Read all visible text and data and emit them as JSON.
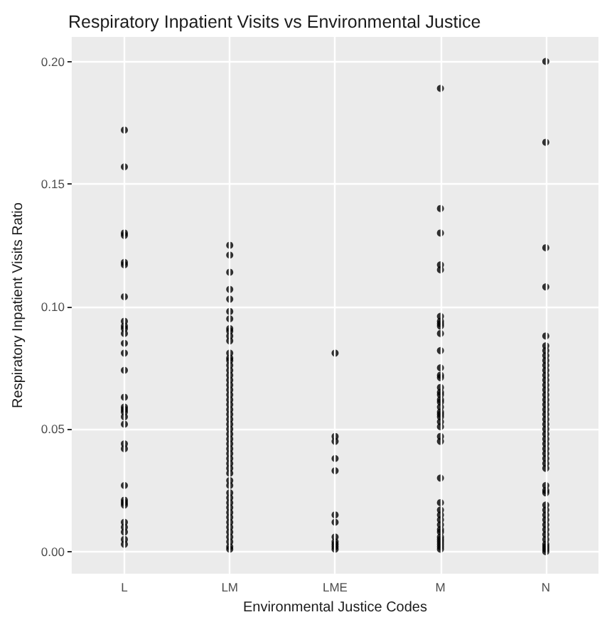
{
  "chart_data": {
    "type": "scatter",
    "title": "Respiratory Inpatient Visits vs Environmental Justice",
    "xlabel": "Environmental Justice Codes",
    "ylabel": "Respiratory Inpatient Visits Ratio",
    "categories": [
      "L",
      "LM",
      "LME",
      "M",
      "N"
    ],
    "ylim": [
      -0.009,
      0.21
    ],
    "yticks": [
      {
        "value": 0,
        "label": "0.00"
      },
      {
        "value": 0.05,
        "label": "0.05"
      },
      {
        "value": 0.1,
        "label": "0.10"
      },
      {
        "value": 0.15,
        "label": "0.15"
      },
      {
        "value": 0.2,
        "label": "0.20"
      }
    ],
    "grid": true,
    "marker": "circle",
    "series": [
      {
        "color": "#000000",
        "x": [
          "L",
          "L",
          "L",
          "L",
          "L",
          "L",
          "L",
          "L",
          "L",
          "L",
          "L",
          "L",
          "L",
          "L",
          "L",
          "L",
          "L",
          "L",
          "L",
          "L",
          "L",
          "L",
          "L",
          "L",
          "L",
          "L",
          "L",
          "L",
          "L",
          "L",
          "L",
          "LM",
          "LM",
          "LM",
          "LM",
          "LM",
          "LM",
          "LM",
          "LM",
          "LM",
          "LM",
          "LM",
          "LM",
          "LM",
          "LM",
          "LM",
          "LM",
          "LM",
          "LM",
          "LM",
          "LM",
          "LM",
          "LM",
          "LM",
          "LM",
          "LM",
          "LM",
          "LM",
          "LM",
          "LM",
          "LM",
          "LM",
          "LM",
          "LM",
          "LM",
          "LM",
          "LM",
          "LM",
          "LM",
          "LM",
          "LM",
          "LM",
          "LM",
          "LM",
          "LM",
          "LM",
          "LM",
          "LM",
          "LM",
          "LM",
          "LM",
          "LM",
          "LM",
          "LME",
          "LME",
          "LME",
          "LME",
          "LME",
          "LME",
          "LME",
          "LME",
          "LME",
          "LME",
          "LME",
          "LME",
          "M",
          "M",
          "M",
          "M",
          "M",
          "M",
          "M",
          "M",
          "M",
          "M",
          "M",
          "M",
          "M",
          "M",
          "M",
          "M",
          "M",
          "M",
          "M",
          "M",
          "M",
          "M",
          "M",
          "M",
          "M",
          "M",
          "M",
          "M",
          "M",
          "M",
          "M",
          "M",
          "M",
          "M",
          "M",
          "M",
          "M",
          "M",
          "M",
          "M",
          "M",
          "N",
          "N",
          "N",
          "N",
          "N",
          "N",
          "N",
          "N",
          "N",
          "N",
          "N",
          "N",
          "N",
          "N",
          "N",
          "N",
          "N",
          "N",
          "N",
          "N",
          "N",
          "N",
          "N",
          "N",
          "N",
          "N",
          "N",
          "N",
          "N",
          "N",
          "N",
          "N",
          "N",
          "N",
          "N",
          "N",
          "N",
          "N",
          "N",
          "N",
          "N",
          "N",
          "N",
          "N",
          "N",
          "N"
        ],
        "values": [
          0.172,
          0.157,
          0.13,
          0.129,
          0.118,
          0.117,
          0.104,
          0.094,
          0.092,
          0.091,
          0.089,
          0.085,
          0.081,
          0.074,
          0.063,
          0.059,
          0.058,
          0.057,
          0.055,
          0.052,
          0.044,
          0.042,
          0.027,
          0.021,
          0.02,
          0.019,
          0.012,
          0.01,
          0.008,
          0.005,
          0.003,
          0.125,
          0.121,
          0.114,
          0.107,
          0.103,
          0.098,
          0.095,
          0.091,
          0.09,
          0.088,
          0.086,
          0.081,
          0.079,
          0.078,
          0.076,
          0.074,
          0.072,
          0.07,
          0.068,
          0.066,
          0.064,
          0.062,
          0.06,
          0.058,
          0.056,
          0.054,
          0.052,
          0.05,
          0.048,
          0.046,
          0.044,
          0.042,
          0.04,
          0.038,
          0.036,
          0.034,
          0.032,
          0.029,
          0.027,
          0.024,
          0.022,
          0.02,
          0.018,
          0.016,
          0.014,
          0.012,
          0.01,
          0.008,
          0.006,
          0.004,
          0.002,
          0.001,
          0.081,
          0.047,
          0.045,
          0.038,
          0.033,
          0.015,
          0.012,
          0.006,
          0.004,
          0.003,
          0.002,
          0.001,
          0.189,
          0.14,
          0.13,
          0.117,
          0.115,
          0.096,
          0.094,
          0.093,
          0.092,
          0.089,
          0.082,
          0.075,
          0.072,
          0.071,
          0.067,
          0.065,
          0.064,
          0.062,
          0.061,
          0.059,
          0.057,
          0.056,
          0.055,
          0.053,
          0.051,
          0.047,
          0.045,
          0.03,
          0.02,
          0.017,
          0.015,
          0.013,
          0.011,
          0.009,
          0.008,
          0.006,
          0.005,
          0.004,
          0.003,
          0.002,
          0.001,
          0.2,
          0.167,
          0.124,
          0.108,
          0.088,
          0.084,
          0.082,
          0.08,
          0.078,
          0.076,
          0.074,
          0.072,
          0.07,
          0.068,
          0.066,
          0.064,
          0.062,
          0.06,
          0.058,
          0.056,
          0.054,
          0.052,
          0.05,
          0.048,
          0.046,
          0.044,
          0.042,
          0.04,
          0.038,
          0.036,
          0.034,
          0.027,
          0.025,
          0.024,
          0.019,
          0.017,
          0.015,
          0.013,
          0.011,
          0.009,
          0.007,
          0.005,
          0.003,
          0.002,
          0.001,
          0.0
        ]
      }
    ]
  }
}
